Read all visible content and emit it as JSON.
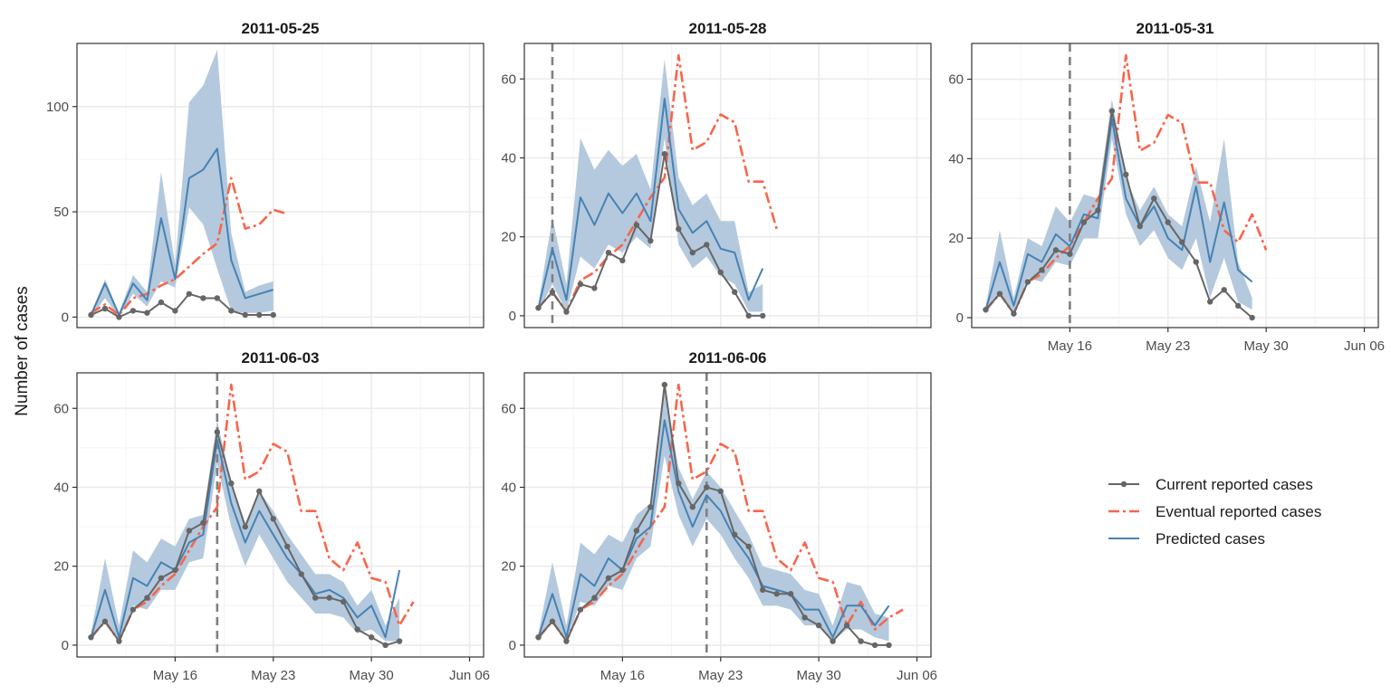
{
  "chart_data": {
    "type": "line",
    "ylabel": "Number of cases",
    "colors": {
      "current": "#666666",
      "eventual": "#F8654A",
      "predicted": "#4682B4",
      "ribbon": "#B4C9DD",
      "grid": "#EBEBEB",
      "vline": "#808080"
    },
    "x_ticks": [
      {
        "date": "2011-05-16",
        "label": "May 16"
      },
      {
        "date": "2011-05-23",
        "label": "May 23"
      },
      {
        "date": "2011-05-30",
        "label": "May 30"
      },
      {
        "date": "2011-06-06",
        "label": "Jun 06"
      }
    ],
    "x_range": [
      "2011-05-09",
      "2011-06-07"
    ],
    "legend": {
      "placement": "right",
      "items": [
        {
          "key": "current",
          "label": "Current reported cases"
        },
        {
          "key": "eventual",
          "label": "Eventual reported cases"
        },
        {
          "key": "predicted",
          "label": "Predicted cases"
        }
      ]
    },
    "eventual_start": "2011-05-10",
    "eventual": [
      2,
      6,
      1,
      9,
      11,
      15,
      18,
      24,
      30,
      35,
      66,
      42,
      44,
      51,
      49,
      34,
      34,
      22,
      19,
      26,
      17,
      16,
      5,
      11,
      4,
      7,
      9
    ],
    "panels": [
      {
        "title": "2011-05-25",
        "ylim": [
          -5,
          130
        ],
        "y_ticks": [
          0,
          50,
          100
        ],
        "vline": null,
        "show_x_axis": false,
        "start": "2011-05-10",
        "current": [
          1,
          4,
          0,
          3,
          2,
          7,
          3,
          11,
          9,
          9,
          3,
          1,
          1,
          1
        ],
        "eventual_n": 15,
        "predicted": [
          1,
          16,
          1,
          16,
          8,
          47,
          18,
          66,
          70,
          80,
          27,
          9,
          11,
          13
        ],
        "lower": [
          0,
          9,
          0,
          11,
          5,
          17,
          14,
          52,
          44,
          23,
          3,
          2,
          2,
          3
        ],
        "upper": [
          2,
          18,
          2,
          20,
          12,
          69,
          25,
          102,
          110,
          127,
          40,
          12,
          15,
          17
        ]
      },
      {
        "title": "2011-05-28",
        "ylim": [
          -3,
          69
        ],
        "y_ticks": [
          0,
          20,
          40,
          60
        ],
        "vline": "2011-05-11",
        "show_x_axis": false,
        "start": "2011-05-10",
        "current": [
          2,
          6,
          1,
          8,
          7,
          16,
          14,
          23,
          19,
          41,
          22,
          16,
          18,
          11,
          6,
          0,
          0
        ],
        "eventual_n": 18,
        "predicted": [
          2,
          17,
          4,
          30,
          23,
          31,
          26,
          31,
          24,
          55,
          27,
          21,
          24,
          17,
          16,
          4,
          12
        ],
        "lower": [
          1,
          8,
          1,
          15,
          12,
          18,
          16,
          20,
          17,
          45,
          18,
          12,
          15,
          10,
          8,
          1,
          1
        ],
        "upper": [
          3,
          25,
          8,
          45,
          37,
          42,
          38,
          41,
          32,
          65,
          35,
          28,
          31,
          24,
          24,
          6,
          8
        ]
      },
      {
        "title": "2011-05-31",
        "ylim": [
          -2.5,
          69
        ],
        "y_ticks": [
          0,
          20,
          40,
          60
        ],
        "vline": "2011-05-16",
        "show_x_axis": true,
        "start": "2011-05-10",
        "current": [
          2,
          6,
          1,
          9,
          12,
          17,
          16,
          24,
          27,
          52,
          36,
          23,
          30,
          24,
          19,
          14,
          4,
          7,
          3,
          0
        ],
        "eventual_n": 21,
        "predicted": [
          2,
          14,
          3,
          16,
          14,
          21,
          18,
          26,
          25,
          50,
          30,
          23,
          28,
          20,
          17,
          33,
          14,
          29,
          12,
          9
        ],
        "lower": [
          1,
          6,
          1,
          10,
          9,
          14,
          13,
          20,
          20,
          45,
          26,
          18,
          22,
          15,
          12,
          20,
          5,
          15,
          4,
          2
        ],
        "upper": [
          3,
          22,
          5,
          20,
          18,
          28,
          24,
          31,
          30,
          55,
          35,
          27,
          33,
          26,
          23,
          38,
          24,
          45,
          14,
          5
        ]
      },
      {
        "title": "2011-06-03",
        "ylim": [
          -3,
          69
        ],
        "y_ticks": [
          0,
          20,
          40,
          60
        ],
        "vline": "2011-05-19",
        "show_x_axis": true,
        "start": "2011-05-10",
        "current": [
          2,
          6,
          1,
          9,
          12,
          17,
          19,
          29,
          31,
          54,
          41,
          30,
          39,
          32,
          25,
          18,
          12,
          12,
          11,
          4,
          2,
          0,
          1
        ],
        "eventual_n": 24,
        "predicted": [
          2,
          14,
          2,
          17,
          15,
          21,
          19,
          26,
          28,
          52,
          36,
          26,
          34,
          28,
          22,
          18,
          13,
          14,
          12,
          7,
          10,
          2,
          19
        ],
        "lower": [
          1,
          6,
          1,
          10,
          9,
          14,
          14,
          21,
          22,
          46,
          30,
          20,
          28,
          22,
          16,
          12,
          8,
          8,
          7,
          3,
          4,
          1,
          1
        ],
        "upper": [
          3,
          22,
          5,
          24,
          21,
          27,
          25,
          32,
          33,
          57,
          41,
          31,
          39,
          34,
          28,
          23,
          18,
          18,
          16,
          10,
          14,
          5,
          12
        ]
      },
      {
        "title": "2011-06-06",
        "ylim": [
          -3,
          69
        ],
        "y_ticks": [
          0,
          20,
          40,
          60
        ],
        "vline": "2011-05-22",
        "show_x_axis": true,
        "start": "2011-05-10",
        "current": [
          2,
          6,
          1,
          9,
          12,
          17,
          19,
          29,
          35,
          66,
          41,
          35,
          40,
          39,
          28,
          25,
          14,
          13,
          13,
          7,
          5,
          1,
          5,
          1,
          0,
          0
        ],
        "eventual_n": 27,
        "predicted": [
          2,
          13,
          2,
          18,
          15,
          22,
          19,
          27,
          30,
          57,
          39,
          30,
          38,
          34,
          27,
          22,
          15,
          14,
          13,
          9,
          9,
          2,
          10,
          10,
          5,
          10
        ],
        "lower": [
          1,
          6,
          1,
          11,
          10,
          15,
          14,
          22,
          25,
          48,
          33,
          25,
          32,
          28,
          22,
          17,
          10,
          10,
          9,
          5,
          5,
          1,
          4,
          4,
          2,
          1
        ],
        "upper": [
          3,
          21,
          5,
          26,
          23,
          28,
          26,
          33,
          36,
          65,
          45,
          37,
          44,
          40,
          34,
          28,
          20,
          19,
          18,
          14,
          13,
          5,
          16,
          15,
          8,
          7
        ]
      }
    ]
  }
}
